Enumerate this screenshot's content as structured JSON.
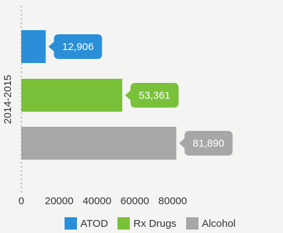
{
  "chart_data": {
    "type": "bar",
    "orientation": "horizontal",
    "categories": [
      "2014-2015"
    ],
    "series": [
      {
        "name": "ATOD",
        "values": [
          12906
        ],
        "label": "12,906",
        "color": "#2a8fd8"
      },
      {
        "name": "Rx Drugs",
        "values": [
          53361
        ],
        "label": "53,361",
        "color": "#7ac13a"
      },
      {
        "name": "Alcohol",
        "values": [
          81890
        ],
        "label": "81,890",
        "color": "#a7a7a7"
      }
    ],
    "x_ticks": [
      "0",
      "20000",
      "40000",
      "60000",
      "80000"
    ],
    "xlim": [
      0,
      90000
    ],
    "grid": false,
    "legend_position": "bottom"
  }
}
